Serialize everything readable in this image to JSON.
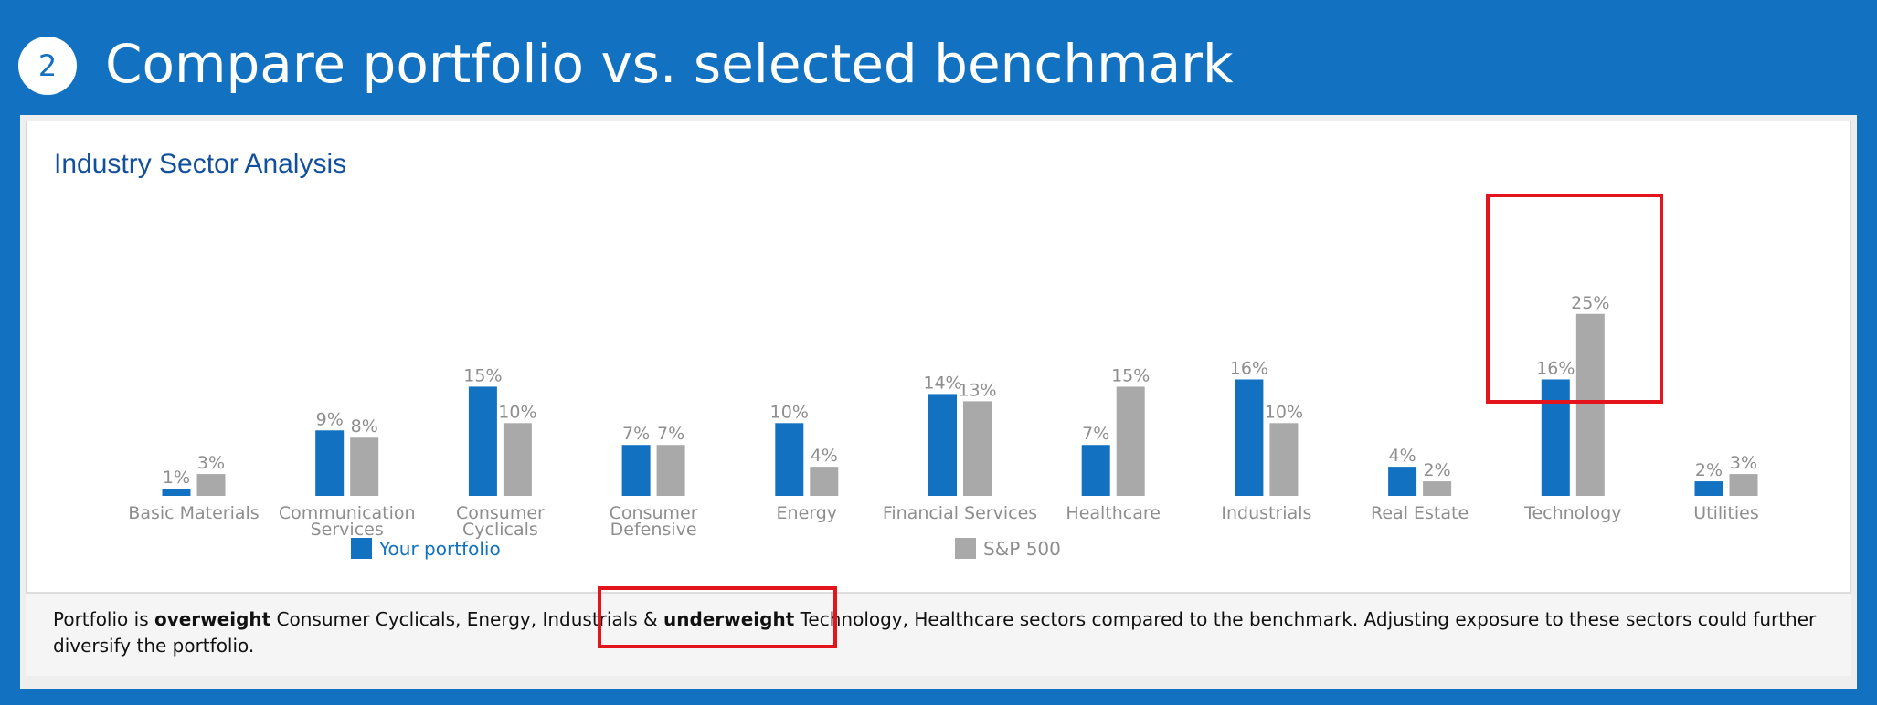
{
  "header": {
    "step_number": "2",
    "title": "Compare portfolio vs. selected benchmark"
  },
  "card": {
    "title": "Industry Sector Analysis"
  },
  "colors": {
    "portfolio": "#1271c0",
    "benchmark": "#a9a9a9",
    "highlight": "#e3141b",
    "title_blue": "#124f9c"
  },
  "chart_data": {
    "type": "bar",
    "title": "Industry Sector Analysis",
    "categories": [
      [
        "Basic Materials"
      ],
      [
        "Communication",
        "Services"
      ],
      [
        "Consumer",
        "Cyclicals"
      ],
      [
        "Consumer",
        "Defensive"
      ],
      [
        "Energy"
      ],
      [
        "Financial Services"
      ],
      [
        "Healthcare"
      ],
      [
        "Industrials"
      ],
      [
        "Real Estate"
      ],
      [
        "Technology"
      ],
      [
        "Utilities"
      ]
    ],
    "series": [
      {
        "name": "Your portfolio",
        "values": [
          1,
          9,
          15,
          7,
          10,
          14,
          7,
          16,
          4,
          16,
          2
        ],
        "labels": [
          "1%",
          "9%",
          "15%",
          "7%",
          "10%",
          "14%",
          "7%",
          "16%",
          "4%",
          "16%",
          "2%"
        ]
      },
      {
        "name": "S&P 500",
        "values": [
          3,
          8,
          10,
          7,
          4,
          13,
          15,
          10,
          2,
          25,
          3
        ],
        "labels": [
          "3%",
          "8%",
          "10%",
          "7%",
          "4%",
          "13%",
          "15%",
          "10%",
          "2%",
          "25%",
          "3%"
        ]
      }
    ],
    "units": "%",
    "ylim": [
      0,
      26
    ],
    "grid": false,
    "legend_position": "bottom"
  },
  "summary": {
    "prefix": "Portfolio is ",
    "bold1": "overweight",
    "middle": " Consumer Cyclicals, Energy, Industrials & ",
    "bold2": "underweight",
    "suffix": " Technology, Healthcare sectors compared to the benchmark. Adjusting exposure to these sectors could further diversify the portfolio."
  }
}
